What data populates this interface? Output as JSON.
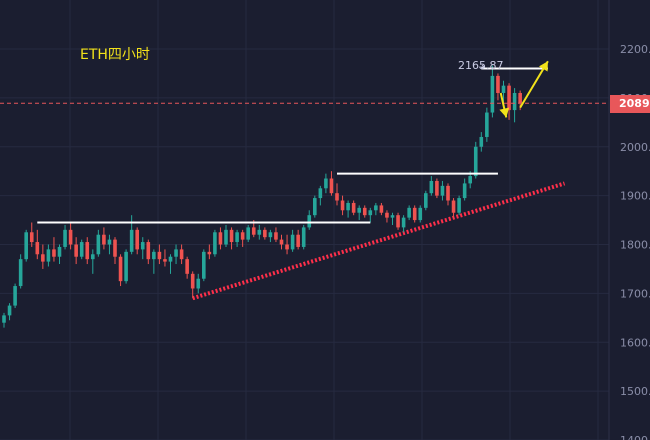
{
  "chart_data": {
    "type": "candlestick",
    "annotation_title": "ETH四小时",
    "y_axis": {
      "side": "right",
      "ylim": [
        1400,
        2250
      ],
      "ticks": [
        "2200.00",
        "2100.00",
        "2000.00",
        "1900.00",
        "1800.00",
        "1700.00",
        "1600.00",
        "1500.00",
        "1400.00"
      ]
    },
    "grid": true,
    "current_price": {
      "value": 2089,
      "label": "2089.",
      "color": "#e8575a"
    },
    "peak": {
      "value": 2165.87,
      "label": "2165.87"
    },
    "resistance_levels": [
      {
        "value": 1845,
        "from_index": 6,
        "to_index": 66
      },
      {
        "value": 1945,
        "from_index": 60,
        "to_index": 89
      },
      {
        "value": 2160,
        "from_index": 86,
        "to_index": 98
      }
    ],
    "trendline": {
      "from": {
        "index": 34,
        "value": 1690
      },
      "to": {
        "index": 101,
        "value": 1925
      },
      "color": "#ff2f4a"
    },
    "arrows": [
      {
        "direction": "down",
        "from": {
          "index": 89.5,
          "value": 2110
        },
        "to": {
          "index": 90.5,
          "value": 2060
        },
        "color": "#f2e21a"
      },
      {
        "direction": "up",
        "from": {
          "index": 93,
          "value": 2080
        },
        "to": {
          "index": 98,
          "value": 2175
        },
        "color": "#f2e21a"
      }
    ],
    "colors": {
      "up": "#26a69a",
      "down": "#ef5350",
      "background": "#1b1e30",
      "grid": "#262a40"
    },
    "candles": [
      {
        "o": 1640,
        "h": 1660,
        "l": 1630,
        "c": 1655
      },
      {
        "o": 1655,
        "h": 1680,
        "l": 1645,
        "c": 1675
      },
      {
        "o": 1675,
        "h": 1720,
        "l": 1670,
        "c": 1715
      },
      {
        "o": 1715,
        "h": 1780,
        "l": 1710,
        "c": 1770
      },
      {
        "o": 1770,
        "h": 1830,
        "l": 1765,
        "c": 1825
      },
      {
        "o": 1825,
        "h": 1845,
        "l": 1795,
        "c": 1805
      },
      {
        "o": 1805,
        "h": 1830,
        "l": 1770,
        "c": 1780
      },
      {
        "o": 1780,
        "h": 1800,
        "l": 1750,
        "c": 1765
      },
      {
        "o": 1765,
        "h": 1800,
        "l": 1755,
        "c": 1790
      },
      {
        "o": 1790,
        "h": 1815,
        "l": 1765,
        "c": 1775
      },
      {
        "o": 1775,
        "h": 1800,
        "l": 1760,
        "c": 1795
      },
      {
        "o": 1795,
        "h": 1840,
        "l": 1790,
        "c": 1830
      },
      {
        "o": 1830,
        "h": 1845,
        "l": 1790,
        "c": 1800
      },
      {
        "o": 1800,
        "h": 1815,
        "l": 1760,
        "c": 1775
      },
      {
        "o": 1775,
        "h": 1810,
        "l": 1770,
        "c": 1805
      },
      {
        "o": 1805,
        "h": 1815,
        "l": 1760,
        "c": 1770
      },
      {
        "o": 1770,
        "h": 1790,
        "l": 1740,
        "c": 1780
      },
      {
        "o": 1780,
        "h": 1830,
        "l": 1775,
        "c": 1820
      },
      {
        "o": 1820,
        "h": 1835,
        "l": 1790,
        "c": 1800
      },
      {
        "o": 1800,
        "h": 1820,
        "l": 1780,
        "c": 1810
      },
      {
        "o": 1810,
        "h": 1815,
        "l": 1760,
        "c": 1775
      },
      {
        "o": 1775,
        "h": 1780,
        "l": 1715,
        "c": 1725
      },
      {
        "o": 1725,
        "h": 1790,
        "l": 1720,
        "c": 1785
      },
      {
        "o": 1785,
        "h": 1860,
        "l": 1780,
        "c": 1830
      },
      {
        "o": 1830,
        "h": 1835,
        "l": 1780,
        "c": 1790
      },
      {
        "o": 1790,
        "h": 1815,
        "l": 1770,
        "c": 1805
      },
      {
        "o": 1805,
        "h": 1810,
        "l": 1760,
        "c": 1770
      },
      {
        "o": 1770,
        "h": 1790,
        "l": 1740,
        "c": 1785
      },
      {
        "o": 1785,
        "h": 1800,
        "l": 1760,
        "c": 1770
      },
      {
        "o": 1770,
        "h": 1790,
        "l": 1755,
        "c": 1765
      },
      {
        "o": 1765,
        "h": 1780,
        "l": 1740,
        "c": 1775
      },
      {
        "o": 1775,
        "h": 1800,
        "l": 1760,
        "c": 1790
      },
      {
        "o": 1790,
        "h": 1800,
        "l": 1760,
        "c": 1770
      },
      {
        "o": 1770,
        "h": 1775,
        "l": 1730,
        "c": 1740
      },
      {
        "o": 1740,
        "h": 1745,
        "l": 1690,
        "c": 1710
      },
      {
        "o": 1710,
        "h": 1740,
        "l": 1700,
        "c": 1730
      },
      {
        "o": 1730,
        "h": 1790,
        "l": 1725,
        "c": 1785
      },
      {
        "o": 1785,
        "h": 1800,
        "l": 1770,
        "c": 1780
      },
      {
        "o": 1780,
        "h": 1830,
        "l": 1775,
        "c": 1825
      },
      {
        "o": 1825,
        "h": 1835,
        "l": 1790,
        "c": 1800
      },
      {
        "o": 1800,
        "h": 1840,
        "l": 1795,
        "c": 1830
      },
      {
        "o": 1830,
        "h": 1835,
        "l": 1790,
        "c": 1805
      },
      {
        "o": 1805,
        "h": 1830,
        "l": 1795,
        "c": 1825
      },
      {
        "o": 1825,
        "h": 1830,
        "l": 1795,
        "c": 1810
      },
      {
        "o": 1810,
        "h": 1840,
        "l": 1805,
        "c": 1835
      },
      {
        "o": 1835,
        "h": 1850,
        "l": 1815,
        "c": 1820
      },
      {
        "o": 1820,
        "h": 1840,
        "l": 1810,
        "c": 1830
      },
      {
        "o": 1830,
        "h": 1835,
        "l": 1810,
        "c": 1815
      },
      {
        "o": 1815,
        "h": 1830,
        "l": 1805,
        "c": 1825
      },
      {
        "o": 1825,
        "h": 1835,
        "l": 1805,
        "c": 1810
      },
      {
        "o": 1810,
        "h": 1820,
        "l": 1790,
        "c": 1800
      },
      {
        "o": 1800,
        "h": 1820,
        "l": 1780,
        "c": 1790
      },
      {
        "o": 1790,
        "h": 1830,
        "l": 1785,
        "c": 1820
      },
      {
        "o": 1820,
        "h": 1830,
        "l": 1790,
        "c": 1795
      },
      {
        "o": 1795,
        "h": 1840,
        "l": 1790,
        "c": 1835
      },
      {
        "o": 1835,
        "h": 1870,
        "l": 1830,
        "c": 1860
      },
      {
        "o": 1860,
        "h": 1900,
        "l": 1855,
        "c": 1895
      },
      {
        "o": 1895,
        "h": 1920,
        "l": 1880,
        "c": 1915
      },
      {
        "o": 1915,
        "h": 1945,
        "l": 1905,
        "c": 1935
      },
      {
        "o": 1935,
        "h": 1950,
        "l": 1900,
        "c": 1905
      },
      {
        "o": 1905,
        "h": 1925,
        "l": 1880,
        "c": 1890
      },
      {
        "o": 1890,
        "h": 1900,
        "l": 1860,
        "c": 1870
      },
      {
        "o": 1870,
        "h": 1890,
        "l": 1855,
        "c": 1885
      },
      {
        "o": 1885,
        "h": 1890,
        "l": 1860,
        "c": 1865
      },
      {
        "o": 1865,
        "h": 1880,
        "l": 1850,
        "c": 1875
      },
      {
        "o": 1875,
        "h": 1880,
        "l": 1855,
        "c": 1860
      },
      {
        "o": 1860,
        "h": 1875,
        "l": 1845,
        "c": 1870
      },
      {
        "o": 1870,
        "h": 1885,
        "l": 1860,
        "c": 1880
      },
      {
        "o": 1880,
        "h": 1885,
        "l": 1860,
        "c": 1865
      },
      {
        "o": 1865,
        "h": 1870,
        "l": 1845,
        "c": 1855
      },
      {
        "o": 1855,
        "h": 1865,
        "l": 1840,
        "c": 1860
      },
      {
        "o": 1860,
        "h": 1865,
        "l": 1830,
        "c": 1835
      },
      {
        "o": 1835,
        "h": 1860,
        "l": 1825,
        "c": 1855
      },
      {
        "o": 1855,
        "h": 1880,
        "l": 1850,
        "c": 1875
      },
      {
        "o": 1875,
        "h": 1880,
        "l": 1845,
        "c": 1850
      },
      {
        "o": 1850,
        "h": 1880,
        "l": 1845,
        "c": 1875
      },
      {
        "o": 1875,
        "h": 1910,
        "l": 1870,
        "c": 1905
      },
      {
        "o": 1905,
        "h": 1940,
        "l": 1900,
        "c": 1930
      },
      {
        "o": 1930,
        "h": 1935,
        "l": 1895,
        "c": 1900
      },
      {
        "o": 1900,
        "h": 1930,
        "l": 1890,
        "c": 1920
      },
      {
        "o": 1920,
        "h": 1925,
        "l": 1880,
        "c": 1890
      },
      {
        "o": 1890,
        "h": 1895,
        "l": 1855,
        "c": 1865
      },
      {
        "o": 1865,
        "h": 1900,
        "l": 1860,
        "c": 1895
      },
      {
        "o": 1895,
        "h": 1935,
        "l": 1890,
        "c": 1925
      },
      {
        "o": 1925,
        "h": 1950,
        "l": 1915,
        "c": 1940
      },
      {
        "o": 1940,
        "h": 2010,
        "l": 1935,
        "c": 2000
      },
      {
        "o": 2000,
        "h": 2030,
        "l": 1990,
        "c": 2020
      },
      {
        "o": 2020,
        "h": 2080,
        "l": 2010,
        "c": 2070
      },
      {
        "o": 2070,
        "h": 2166,
        "l": 2060,
        "c": 2145
      },
      {
        "o": 2145,
        "h": 2150,
        "l": 2095,
        "c": 2110
      },
      {
        "o": 2110,
        "h": 2135,
        "l": 2080,
        "c": 2125
      },
      {
        "o": 2125,
        "h": 2130,
        "l": 2055,
        "c": 2075
      },
      {
        "o": 2075,
        "h": 2120,
        "l": 2050,
        "c": 2110
      },
      {
        "o": 2110,
        "h": 2115,
        "l": 2075,
        "c": 2089
      }
    ]
  }
}
